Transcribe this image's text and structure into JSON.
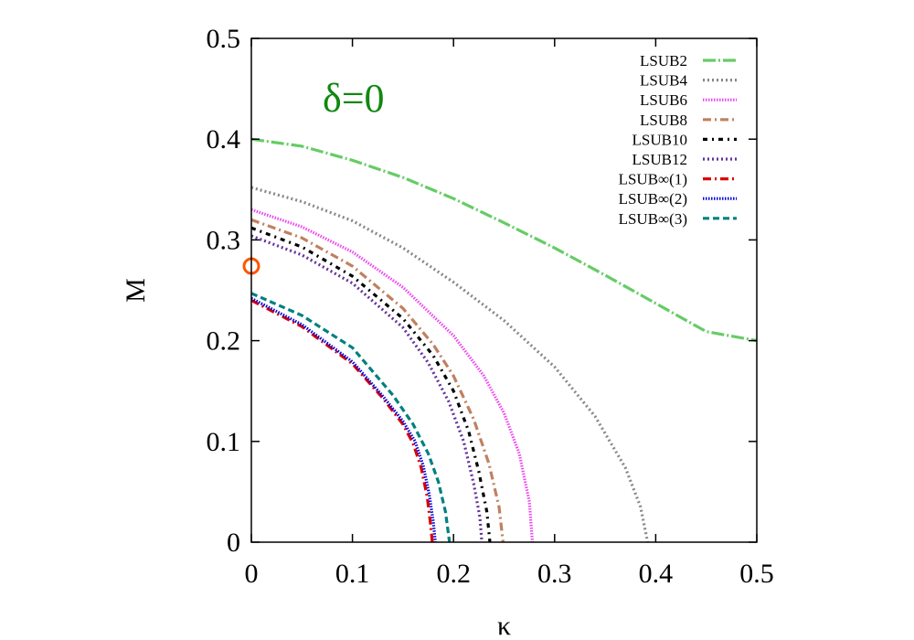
{
  "chart_data": {
    "type": "line",
    "xlabel": "κ",
    "ylabel": "M",
    "xlim": [
      0,
      0.5
    ],
    "ylim": [
      0,
      0.5
    ],
    "x_ticks": [
      "0",
      "0.1",
      "0.2",
      "0.3",
      "0.4",
      "0.5"
    ],
    "y_ticks": [
      "0",
      "0.1",
      "0.2",
      "0.3",
      "0.4",
      "0.5"
    ],
    "grid": false,
    "legend_position": "top-right",
    "annotation": {
      "text": "δ=0",
      "color": "#118811"
    },
    "marker_point": {
      "x": 0,
      "y": 0.274,
      "color": "#ff5500",
      "shape": "open-circle"
    },
    "series": [
      {
        "name": "LSUB2",
        "color": "#66cc66",
        "dash": "dashdot-long",
        "points": [
          [
            0,
            0.4
          ],
          [
            0.05,
            0.393
          ],
          [
            0.1,
            0.379
          ],
          [
            0.15,
            0.362
          ],
          [
            0.2,
            0.341
          ],
          [
            0.25,
            0.317
          ],
          [
            0.3,
            0.292
          ],
          [
            0.35,
            0.265
          ],
          [
            0.4,
            0.237
          ],
          [
            0.45,
            0.209
          ],
          [
            0.5,
            0.2
          ]
        ]
      },
      {
        "name": "LSUB4",
        "color": "#888888",
        "dash": "dot",
        "points": [
          [
            0,
            0.352
          ],
          [
            0.05,
            0.338
          ],
          [
            0.1,
            0.319
          ],
          [
            0.15,
            0.292
          ],
          [
            0.2,
            0.258
          ],
          [
            0.25,
            0.22
          ],
          [
            0.3,
            0.174
          ],
          [
            0.34,
            0.125
          ],
          [
            0.37,
            0.074
          ],
          [
            0.385,
            0.035
          ],
          [
            0.392,
            0
          ]
        ]
      },
      {
        "name": "LSUB6",
        "color": "#ee44ee",
        "dash": "dot-dense",
        "points": [
          [
            0,
            0.33
          ],
          [
            0.05,
            0.313
          ],
          [
            0.1,
            0.288
          ],
          [
            0.15,
            0.253
          ],
          [
            0.2,
            0.205
          ],
          [
            0.23,
            0.165
          ],
          [
            0.25,
            0.128
          ],
          [
            0.265,
            0.088
          ],
          [
            0.275,
            0.04
          ],
          [
            0.278,
            0
          ]
        ]
      },
      {
        "name": "LSUB8",
        "color": "#c08060",
        "dash": "dashdot",
        "points": [
          [
            0,
            0.32
          ],
          [
            0.05,
            0.302
          ],
          [
            0.1,
            0.274
          ],
          [
            0.15,
            0.232
          ],
          [
            0.18,
            0.196
          ],
          [
            0.2,
            0.165
          ],
          [
            0.22,
            0.122
          ],
          [
            0.235,
            0.078
          ],
          [
            0.245,
            0.035
          ],
          [
            0.249,
            0
          ]
        ]
      },
      {
        "name": "LSUB10",
        "color": "#000000",
        "dash": "dashdot-short",
        "points": [
          [
            0,
            0.312
          ],
          [
            0.05,
            0.293
          ],
          [
            0.1,
            0.264
          ],
          [
            0.15,
            0.222
          ],
          [
            0.18,
            0.185
          ],
          [
            0.2,
            0.15
          ],
          [
            0.215,
            0.11
          ],
          [
            0.225,
            0.07
          ],
          [
            0.233,
            0.03
          ],
          [
            0.236,
            0
          ]
        ]
      },
      {
        "name": "LSUB12",
        "color": "#663399",
        "dash": "dot",
        "points": [
          [
            0,
            0.304
          ],
          [
            0.05,
            0.285
          ],
          [
            0.1,
            0.257
          ],
          [
            0.15,
            0.213
          ],
          [
            0.175,
            0.178
          ],
          [
            0.195,
            0.14
          ],
          [
            0.21,
            0.1
          ],
          [
            0.22,
            0.058
          ],
          [
            0.226,
            0.025
          ],
          [
            0.228,
            0
          ]
        ]
      },
      {
        "name": "LSUB∞(1)",
        "color": "#dd0000",
        "dash": "dashdot",
        "points": [
          [
            0,
            0.24
          ],
          [
            0.05,
            0.214
          ],
          [
            0.1,
            0.177
          ],
          [
            0.13,
            0.143
          ],
          [
            0.15,
            0.117
          ],
          [
            0.16,
            0.098
          ],
          [
            0.168,
            0.074
          ],
          [
            0.174,
            0.045
          ],
          [
            0.177,
            0.02
          ],
          [
            0.179,
            0
          ]
        ]
      },
      {
        "name": "LSUB∞(2)",
        "color": "#0000dd",
        "dash": "dot-dense",
        "points": [
          [
            0,
            0.242
          ],
          [
            0.05,
            0.216
          ],
          [
            0.1,
            0.179
          ],
          [
            0.13,
            0.145
          ],
          [
            0.15,
            0.12
          ],
          [
            0.162,
            0.1
          ],
          [
            0.17,
            0.076
          ],
          [
            0.176,
            0.047
          ],
          [
            0.18,
            0.02
          ],
          [
            0.182,
            0
          ]
        ]
      },
      {
        "name": "LSUB∞(3)",
        "color": "#008080",
        "dash": "dash",
        "points": [
          [
            0,
            0.247
          ],
          [
            0.05,
            0.225
          ],
          [
            0.1,
            0.193
          ],
          [
            0.14,
            0.146
          ],
          [
            0.16,
            0.117
          ],
          [
            0.175,
            0.088
          ],
          [
            0.185,
            0.06
          ],
          [
            0.192,
            0.03
          ],
          [
            0.196,
            0
          ]
        ]
      }
    ]
  }
}
